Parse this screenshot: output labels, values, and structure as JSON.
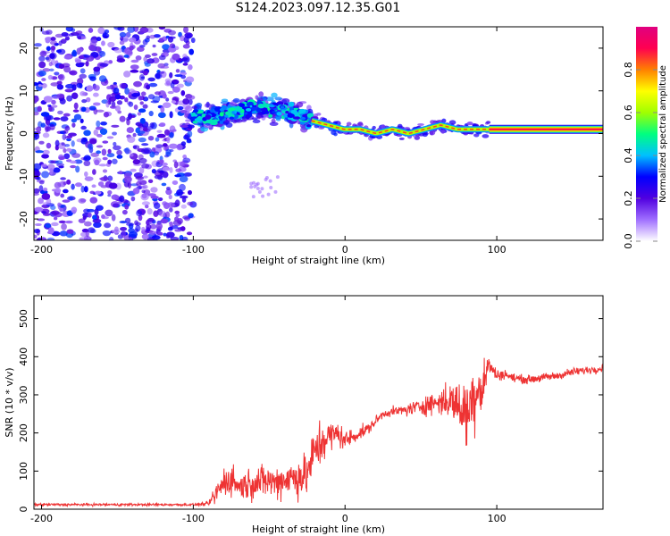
{
  "title": "S124.2023.097.12.35.G01",
  "chart_data": [
    {
      "type": "heatmap",
      "title": "",
      "xlabel": "Height of straight line (km)",
      "ylabel": "Frequency (Hz)",
      "xlim": [
        -205,
        170
      ],
      "ylim": [
        -25,
        25
      ],
      "xticks": [
        -200,
        -100,
        0,
        100
      ],
      "yticks": [
        -20,
        -10,
        0,
        10,
        20
      ],
      "colorbar": {
        "label": "Normalized spectral amplitude",
        "range": [
          0,
          1
        ],
        "ticks": [
          "0.0",
          "0.2",
          "0.4",
          "0.6",
          "0.8"
        ],
        "colors": [
          "#ffffff",
          "#a070ff",
          "#5000e0",
          "#0000ff",
          "#00c0ff",
          "#00ff80",
          "#a0ff00",
          "#ffff00",
          "#ff8000",
          "#ff0050",
          "#e00080"
        ]
      },
      "regions": [
        {
          "label": "noise",
          "x": [
            -205,
            -100
          ],
          "freq_spread": [
            -25,
            25
          ],
          "amplitude": 0.35
        },
        {
          "label": "diffuse",
          "x": [
            -100,
            -22
          ],
          "freq_center": [
            4,
            4,
            5,
            6,
            6,
            5,
            3
          ],
          "freq_spread_hz": 4,
          "amplitude": 0.5
        },
        {
          "label": "tracking",
          "x": [
            -22,
            95
          ],
          "freq_center": [
            3,
            2,
            1,
            1,
            0,
            1,
            0,
            1,
            2,
            1,
            1,
            1
          ],
          "amplitude": 0.8
        },
        {
          "label": "stable",
          "x": [
            95,
            170
          ],
          "freq_center": [
            1,
            1
          ],
          "amplitude": 0.95
        }
      ]
    },
    {
      "type": "line",
      "title": "",
      "xlabel": "Height of straight line (km)",
      "ylabel": "SNR (10 * v/v)",
      "xlim": [
        -205,
        170
      ],
      "ylim": [
        0,
        560
      ],
      "xticks": [
        -200,
        -100,
        0,
        100
      ],
      "yticks": [
        0,
        100,
        200,
        300,
        400,
        500
      ],
      "series": [
        {
          "color": "#ee3333",
          "x": [
            -205,
            -180,
            -150,
            -120,
            -100,
            -90,
            -85,
            -80,
            -75,
            -70,
            -60,
            -50,
            -45,
            -40,
            -30,
            -25,
            -20,
            -15,
            -10,
            -5,
            0,
            5,
            10,
            15,
            20,
            25,
            30,
            40,
            50,
            60,
            70,
            75,
            80,
            85,
            88,
            90,
            93,
            95,
            100,
            105,
            110,
            120,
            130,
            140,
            150,
            160,
            170
          ],
          "values": [
            12,
            12,
            12,
            12,
            12,
            14,
            40,
            70,
            80,
            60,
            70,
            75,
            70,
            80,
            85,
            90,
            150,
            180,
            190,
            200,
            180,
            190,
            200,
            210,
            230,
            250,
            255,
            260,
            270,
            280,
            285,
            270,
            250,
            300,
            330,
            310,
            360,
            380,
            350,
            355,
            345,
            340,
            345,
            350,
            360,
            365,
            370
          ],
          "noise": [
            3,
            3,
            3,
            3,
            3,
            5,
            25,
            40,
            40,
            30,
            40,
            40,
            40,
            45,
            50,
            55,
            60,
            60,
            40,
            30,
            25,
            20,
            15,
            15,
            12,
            10,
            10,
            15,
            20,
            30,
            45,
            60,
            80,
            90,
            80,
            70,
            40,
            20,
            15,
            12,
            10,
            10,
            10,
            10,
            10,
            10,
            10
          ]
        }
      ]
    }
  ]
}
